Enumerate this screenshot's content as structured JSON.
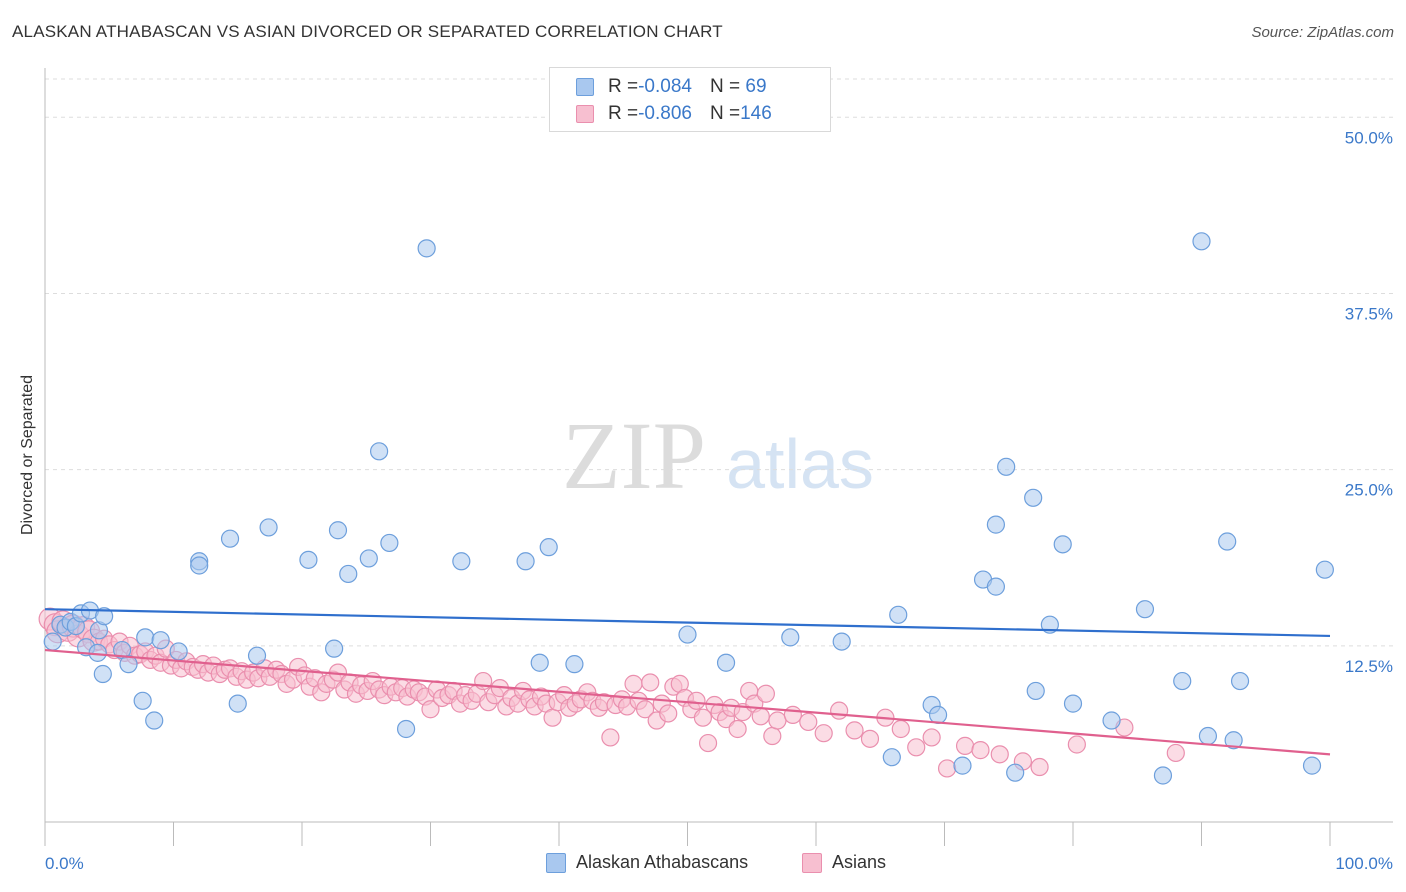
{
  "title": "ALASKAN ATHABASCAN VS ASIAN DIVORCED OR SEPARATED CORRELATION CHART",
  "source": "Source: ZipAtlas.com",
  "watermark": {
    "zip": "ZIP",
    "atlas": "atlas"
  },
  "legend": {
    "rows": [
      {
        "r_label": "R = ",
        "r_value": "-0.084",
        "n_label": "N = ",
        "n_value": " 69",
        "color": "#a9c8ef",
        "stroke": "#6d9fdc"
      },
      {
        "r_label": "R = ",
        "r_value": "-0.806",
        "n_label": "N = ",
        "n_value": "146",
        "color": "#f7bfd0",
        "stroke": "#ea8fae"
      }
    ]
  },
  "bottom_legend": [
    "Alaskan Athabascans",
    "Asians"
  ],
  "chart_data": {
    "type": "scatter",
    "title": "ALASKAN ATHABASCAN VS ASIAN DIVORCED OR SEPARATED CORRELATION CHART",
    "xlabel": "",
    "ylabel": "Divorced or Separated",
    "xlim": [
      0,
      100
    ],
    "ylim": [
      0,
      53
    ],
    "x_tick_labels": [
      "0.0%",
      "100.0%"
    ],
    "y_ticks": [
      12.5,
      25.0,
      37.5,
      50.0
    ],
    "y_tick_labels": [
      "12.5%",
      "25.0%",
      "37.5%",
      "50.0%"
    ],
    "grid": true,
    "legend_position": "top-center",
    "series": [
      {
        "name": "Alaskan Athabascans",
        "color": "#a9c8ef",
        "stroke": "#6d9fdc",
        "line_color": "#2f6fcd",
        "trend": [
          [
            0,
            15.1
          ],
          [
            100,
            13.2
          ]
        ],
        "points": [
          [
            0.6,
            12.8
          ],
          [
            1.2,
            14.0
          ],
          [
            1.6,
            13.8
          ],
          [
            2.0,
            14.2
          ],
          [
            2.4,
            13.9
          ],
          [
            2.8,
            14.8
          ],
          [
            3.2,
            12.4
          ],
          [
            3.5,
            15.0
          ],
          [
            4.2,
            13.6
          ],
          [
            4.6,
            14.6
          ],
          [
            4.5,
            10.5
          ],
          [
            6.0,
            12.2
          ],
          [
            6.5,
            11.2
          ],
          [
            7.8,
            13.1
          ],
          [
            7.6,
            8.6
          ],
          [
            8.5,
            7.2
          ],
          [
            9.0,
            12.9
          ],
          [
            10.4,
            12.1
          ],
          [
            12.0,
            18.5
          ],
          [
            12.0,
            18.2
          ],
          [
            14.4,
            20.1
          ],
          [
            15.0,
            8.4
          ],
          [
            16.5,
            11.8
          ],
          [
            17.4,
            20.9
          ],
          [
            20.5,
            18.6
          ],
          [
            22.5,
            12.3
          ],
          [
            22.8,
            20.7
          ],
          [
            23.6,
            17.6
          ],
          [
            25.2,
            18.7
          ],
          [
            26.0,
            26.3
          ],
          [
            26.8,
            19.8
          ],
          [
            28.1,
            6.6
          ],
          [
            29.7,
            40.7
          ],
          [
            32.4,
            18.5
          ],
          [
            37.4,
            18.5
          ],
          [
            38.5,
            11.3
          ],
          [
            39.2,
            19.5
          ],
          [
            41.2,
            11.2
          ],
          [
            50.0,
            13.3
          ],
          [
            53.0,
            11.3
          ],
          [
            58.0,
            13.1
          ],
          [
            62.0,
            12.8
          ],
          [
            65.9,
            4.6
          ],
          [
            66.4,
            14.7
          ],
          [
            69.0,
            8.3
          ],
          [
            69.5,
            7.6
          ],
          [
            71.4,
            4.0
          ],
          [
            73.0,
            17.2
          ],
          [
            74.0,
            16.7
          ],
          [
            74.0,
            21.1
          ],
          [
            74.8,
            25.2
          ],
          [
            75.5,
            3.5
          ],
          [
            78.2,
            14.0
          ],
          [
            77.1,
            9.3
          ],
          [
            76.9,
            23.0
          ],
          [
            79.2,
            19.7
          ],
          [
            80.0,
            8.4
          ],
          [
            83.0,
            7.2
          ],
          [
            85.6,
            15.1
          ],
          [
            87.0,
            3.3
          ],
          [
            88.5,
            10.0
          ],
          [
            90.0,
            41.2
          ],
          [
            90.5,
            6.1
          ],
          [
            92.0,
            19.9
          ],
          [
            92.5,
            5.8
          ],
          [
            93.0,
            10.0
          ],
          [
            98.6,
            4.0
          ],
          [
            99.6,
            17.9
          ],
          [
            4.1,
            12.0
          ]
        ]
      },
      {
        "name": "Asians",
        "color": "#f7bfd0",
        "stroke": "#ea8fae",
        "line_color": "#e0608e",
        "trend": [
          [
            0,
            12.2
          ],
          [
            100,
            4.8
          ]
        ],
        "points": [
          [
            0.4,
            14.4
          ],
          [
            0.8,
            14.0
          ],
          [
            1.0,
            13.5
          ],
          [
            1.4,
            14.2
          ],
          [
            1.8,
            13.6
          ],
          [
            2.2,
            13.9
          ],
          [
            2.6,
            13.2
          ],
          [
            3.0,
            13.8
          ],
          [
            3.4,
            13.5
          ],
          [
            3.8,
            12.9
          ],
          [
            4.2,
            12.8
          ],
          [
            4.6,
            13.0
          ],
          [
            5.0,
            12.6
          ],
          [
            5.4,
            12.2
          ],
          [
            5.8,
            12.8
          ],
          [
            6.2,
            12.0
          ],
          [
            6.6,
            12.5
          ],
          [
            7.0,
            11.8
          ],
          [
            7.4,
            11.9
          ],
          [
            7.8,
            12.1
          ],
          [
            8.2,
            11.5
          ],
          [
            8.6,
            11.8
          ],
          [
            9.0,
            11.3
          ],
          [
            9.4,
            12.3
          ],
          [
            9.8,
            11.1
          ],
          [
            10.2,
            11.5
          ],
          [
            10.6,
            10.9
          ],
          [
            11.0,
            11.4
          ],
          [
            11.5,
            11.0
          ],
          [
            11.9,
            10.8
          ],
          [
            12.3,
            11.2
          ],
          [
            12.7,
            10.6
          ],
          [
            13.1,
            11.1
          ],
          [
            13.6,
            10.5
          ],
          [
            14.0,
            10.8
          ],
          [
            14.4,
            10.9
          ],
          [
            14.9,
            10.3
          ],
          [
            15.3,
            10.7
          ],
          [
            15.7,
            10.1
          ],
          [
            16.2,
            10.6
          ],
          [
            16.6,
            10.2
          ],
          [
            17.1,
            10.9
          ],
          [
            17.5,
            10.3
          ],
          [
            18.0,
            10.8
          ],
          [
            18.4,
            10.5
          ],
          [
            18.8,
            9.8
          ],
          [
            19.3,
            10.1
          ],
          [
            19.7,
            11.0
          ],
          [
            20.2,
            10.4
          ],
          [
            20.6,
            9.6
          ],
          [
            21.0,
            10.2
          ],
          [
            21.5,
            9.2
          ],
          [
            21.9,
            9.8
          ],
          [
            22.4,
            10.1
          ],
          [
            22.8,
            10.6
          ],
          [
            23.3,
            9.4
          ],
          [
            23.7,
            9.9
          ],
          [
            24.2,
            9.1
          ],
          [
            24.6,
            9.7
          ],
          [
            25.1,
            9.3
          ],
          [
            25.5,
            10.0
          ],
          [
            26.0,
            9.4
          ],
          [
            26.4,
            9.0
          ],
          [
            26.9,
            9.6
          ],
          [
            27.3,
            9.2
          ],
          [
            27.8,
            9.5
          ],
          [
            28.2,
            8.9
          ],
          [
            28.7,
            9.4
          ],
          [
            29.1,
            9.2
          ],
          [
            29.6,
            8.9
          ],
          [
            30.0,
            8.0
          ],
          [
            30.5,
            9.4
          ],
          [
            30.9,
            8.8
          ],
          [
            31.4,
            9.0
          ],
          [
            31.8,
            9.3
          ],
          [
            32.3,
            8.4
          ],
          [
            32.7,
            9.0
          ],
          [
            33.2,
            8.6
          ],
          [
            33.6,
            9.1
          ],
          [
            34.1,
            10.0
          ],
          [
            34.5,
            8.5
          ],
          [
            35.0,
            9.0
          ],
          [
            35.4,
            9.5
          ],
          [
            35.9,
            8.2
          ],
          [
            36.3,
            8.8
          ],
          [
            36.8,
            8.4
          ],
          [
            37.2,
            9.3
          ],
          [
            37.7,
            8.7
          ],
          [
            38.1,
            8.2
          ],
          [
            38.6,
            8.9
          ],
          [
            39.0,
            8.4
          ],
          [
            39.5,
            7.4
          ],
          [
            39.9,
            8.5
          ],
          [
            40.4,
            9.0
          ],
          [
            40.8,
            8.1
          ],
          [
            41.3,
            8.4
          ],
          [
            41.7,
            8.7
          ],
          [
            42.2,
            9.2
          ],
          [
            42.6,
            8.6
          ],
          [
            43.1,
            8.1
          ],
          [
            43.5,
            8.5
          ],
          [
            44.0,
            6.0
          ],
          [
            44.4,
            8.3
          ],
          [
            44.9,
            8.7
          ],
          [
            45.3,
            8.2
          ],
          [
            45.8,
            9.8
          ],
          [
            46.2,
            8.6
          ],
          [
            46.7,
            8.0
          ],
          [
            47.1,
            9.9
          ],
          [
            47.6,
            7.2
          ],
          [
            48.0,
            8.4
          ],
          [
            48.5,
            7.7
          ],
          [
            48.9,
            9.6
          ],
          [
            49.4,
            9.8
          ],
          [
            49.8,
            8.8
          ],
          [
            50.3,
            8.0
          ],
          [
            50.7,
            8.6
          ],
          [
            51.2,
            7.4
          ],
          [
            51.6,
            5.6
          ],
          [
            52.1,
            8.3
          ],
          [
            52.5,
            7.8
          ],
          [
            53.0,
            7.3
          ],
          [
            53.4,
            8.1
          ],
          [
            53.9,
            6.6
          ],
          [
            54.3,
            7.8
          ],
          [
            54.8,
            9.3
          ],
          [
            55.2,
            8.4
          ],
          [
            55.7,
            7.5
          ],
          [
            56.1,
            9.1
          ],
          [
            56.6,
            6.1
          ],
          [
            57.0,
            7.2
          ],
          [
            58.2,
            7.6
          ],
          [
            59.4,
            7.1
          ],
          [
            60.6,
            6.3
          ],
          [
            61.8,
            7.9
          ],
          [
            63.0,
            6.5
          ],
          [
            64.2,
            5.9
          ],
          [
            65.4,
            7.4
          ],
          [
            66.6,
            6.6
          ],
          [
            67.8,
            5.3
          ],
          [
            69.0,
            6.0
          ],
          [
            70.2,
            3.8
          ],
          [
            71.6,
            5.4
          ],
          [
            72.8,
            5.1
          ],
          [
            74.3,
            4.8
          ],
          [
            76.1,
            4.3
          ],
          [
            77.4,
            3.9
          ],
          [
            80.3,
            5.5
          ],
          [
            84.0,
            6.7
          ],
          [
            88.0,
            4.9
          ]
        ]
      }
    ]
  }
}
